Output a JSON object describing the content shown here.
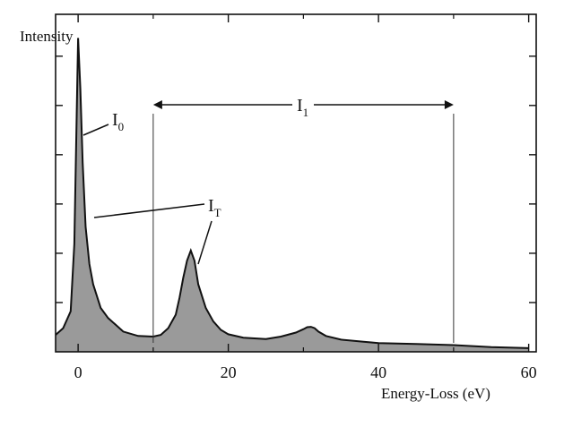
{
  "chart_data": {
    "type": "area",
    "ylabel": "Intensity",
    "xlabel": "Energy-Loss (eV)",
    "xlim": [
      -3,
      61
    ],
    "ylim": [
      0,
      1
    ],
    "x_ticks": [
      0,
      20,
      40,
      60
    ],
    "x_tick_labels": [
      "0",
      "20",
      "40",
      "60"
    ],
    "y_ticks": [
      0.146,
      0.292,
      0.438,
      0.584,
      0.73,
      0.876
    ],
    "grid": false,
    "fill_color": "#9a9a9a",
    "series": [
      {
        "x": [
          -3,
          -2,
          -1,
          -0.5,
          0,
          0.3,
          0.6,
          1,
          1.5,
          2,
          3,
          4,
          5,
          6,
          8,
          10,
          11,
          12,
          13,
          13.5,
          14,
          14.5,
          15,
          15.5,
          16,
          17,
          18,
          19,
          20,
          22,
          25,
          27,
          29,
          30,
          30.5,
          31,
          31.5,
          32,
          33,
          35,
          38,
          40,
          45,
          50,
          55,
          60
        ],
        "y": [
          0.05,
          0.07,
          0.12,
          0.32,
          0.93,
          0.78,
          0.56,
          0.37,
          0.26,
          0.2,
          0.13,
          0.1,
          0.08,
          0.06,
          0.047,
          0.045,
          0.05,
          0.07,
          0.11,
          0.16,
          0.22,
          0.27,
          0.3,
          0.27,
          0.2,
          0.13,
          0.09,
          0.065,
          0.052,
          0.042,
          0.038,
          0.045,
          0.057,
          0.067,
          0.073,
          0.074,
          0.07,
          0.06,
          0.047,
          0.036,
          0.03,
          0.026,
          0.023,
          0.02,
          0.014,
          0.011
        ]
      }
    ],
    "annotations": {
      "i0": {
        "main": "I",
        "sub": "0"
      },
      "it": {
        "main": "I",
        "sub": "T"
      },
      "i1": {
        "main": "I",
        "sub": "1"
      }
    },
    "integration_window": [
      10,
      50
    ]
  }
}
